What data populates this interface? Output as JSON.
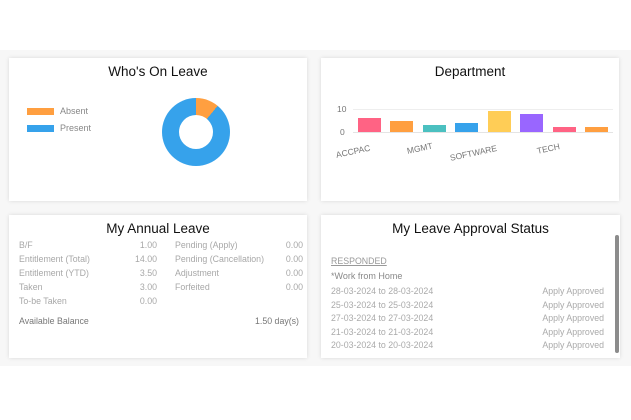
{
  "whos_on_leave": {
    "title": "Who's On Leave",
    "legend": [
      {
        "label": "Absent",
        "color": "#ff9f40"
      },
      {
        "label": "Present",
        "color": "#36a2eb"
      }
    ]
  },
  "department": {
    "title": "Department",
    "y_ticks": [
      "10",
      "0"
    ],
    "x_labels": [
      "ACCPAC",
      "MGMT",
      "SOFTWARE",
      "TECH"
    ]
  },
  "annual_leave": {
    "title": "My Annual Leave",
    "left": [
      {
        "label": "B/F",
        "value": "1.00"
      },
      {
        "label": "Entitlement (Total)",
        "value": "14.00"
      },
      {
        "label": "Entitlement (YTD)",
        "value": "3.50"
      },
      {
        "label": "Taken",
        "value": "3.00"
      },
      {
        "label": "To-be Taken",
        "value": "0.00"
      }
    ],
    "right": [
      {
        "label": "Pending (Apply)",
        "value": "0.00"
      },
      {
        "label": "Pending (Cancellation)",
        "value": "0.00"
      },
      {
        "label": "Adjustment",
        "value": "0.00"
      },
      {
        "label": "Forfeited",
        "value": "0.00"
      }
    ],
    "balance_label": "Available Balance",
    "balance_value": "1.50 day(s)"
  },
  "approval_status": {
    "title": "My Leave Approval Status",
    "section": "RESPONDED",
    "category": "*Work from Home",
    "rows": [
      {
        "dates": "28-03-2024 to 28-03-2024",
        "status": "Apply Approved"
      },
      {
        "dates": "25-03-2024 to 25-03-2024",
        "status": "Apply Approved"
      },
      {
        "dates": "27-03-2024 to 27-03-2024",
        "status": "Apply Approved"
      },
      {
        "dates": "21-03-2024 to 21-03-2024",
        "status": "Apply Approved"
      },
      {
        "dates": "20-03-2024 to 20-03-2024",
        "status": "Apply Approved"
      }
    ]
  },
  "chart_data": [
    {
      "type": "pie",
      "title": "Who's On Leave",
      "categories": [
        "Absent",
        "Present"
      ],
      "values": [
        11,
        89
      ],
      "colors": [
        "#ff9f40",
        "#36a2eb"
      ],
      "legend_position": "left",
      "donut": true
    },
    {
      "type": "bar",
      "title": "Department",
      "categories": [
        "ACCPAC",
        "",
        "MGMT",
        "",
        "SOFTWARE",
        "",
        "TECH",
        ""
      ],
      "values": [
        6,
        5,
        3,
        4,
        9,
        8,
        2,
        2
      ],
      "colors": [
        "#ff6384",
        "#ff9f40",
        "#4bc0c0",
        "#36a2eb",
        "#ffcd56",
        "#9966ff",
        "#ff6384",
        "#ff9f40"
      ],
      "xlabel": "",
      "ylabel": "",
      "ylim": [
        0,
        10
      ],
      "y_ticks": [
        0,
        10
      ],
      "grid": true
    }
  ]
}
